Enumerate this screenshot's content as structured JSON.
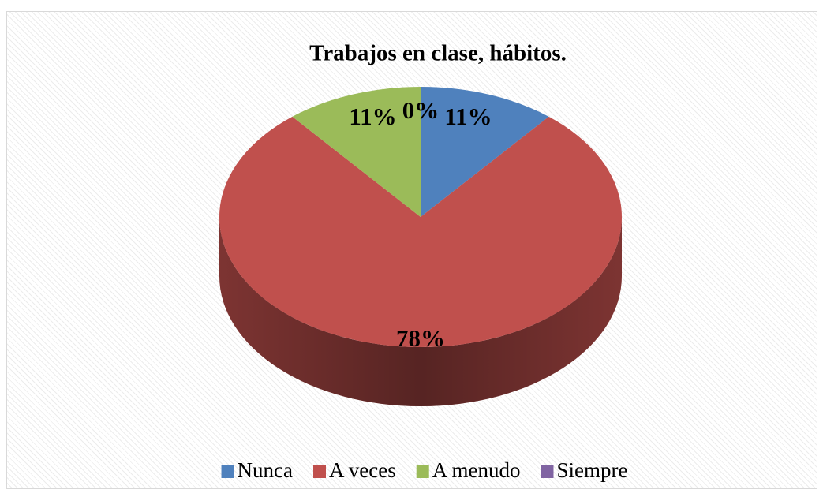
{
  "chart_data": {
    "type": "pie",
    "title": "Trabajos en clase, hábitos.",
    "categories": [
      "Nunca",
      "A veces",
      "A menudo",
      "Siempre"
    ],
    "values": [
      11,
      78,
      11,
      0
    ],
    "value_labels": [
      "11%",
      "78%",
      "11%",
      "0%"
    ],
    "colors": [
      "#4f81bd",
      "#c0504d",
      "#9bbb59",
      "#8064a2"
    ],
    "legend": "bottom"
  }
}
